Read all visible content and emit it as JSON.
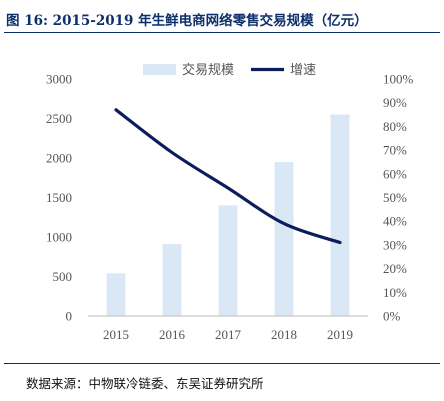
{
  "figure": {
    "title": "图 16:  2015-2019 年生鲜电商网络零售交易规模（亿元）",
    "source": "数据来源：中物联冷链委、东吴证券研究所"
  },
  "chart_data": {
    "type": "bar",
    "categories": [
      "2015",
      "2016",
      "2017",
      "2018",
      "2019"
    ],
    "series": [
      {
        "name": "交易规模",
        "type": "bar",
        "axis": "left",
        "values": [
          540,
          910,
          1400,
          1950,
          2550
        ]
      },
      {
        "name": "增速",
        "type": "line",
        "axis": "right",
        "values": [
          0.87,
          0.69,
          0.54,
          0.39,
          0.31
        ]
      }
    ],
    "y_left": {
      "range": [
        0,
        3000
      ],
      "ticks": [
        "0",
        "500",
        "1000",
        "1500",
        "2000",
        "2500",
        "3000"
      ]
    },
    "y_right": {
      "range": [
        0,
        1
      ],
      "ticks": [
        "0%",
        "10%",
        "20%",
        "30%",
        "40%",
        "50%",
        "60%",
        "70%",
        "80%",
        "90%",
        "100%"
      ]
    },
    "grid": false,
    "legend_position": "top-center",
    "colors": {
      "bar": "#dae7f5",
      "line": "#0b1e5b",
      "axis_text": "#555555",
      "title": "#0d2f6b"
    }
  }
}
